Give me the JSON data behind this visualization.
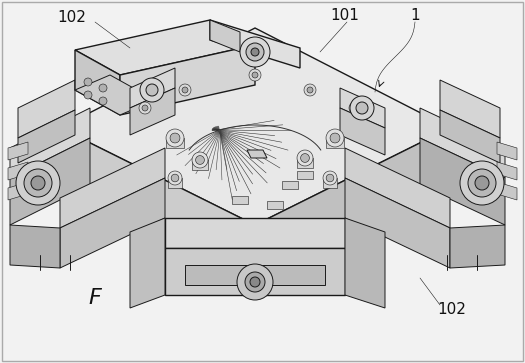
{
  "background_color": "#f2f2f2",
  "line_color": "#1a1a1a",
  "label_102_tl": "102",
  "label_101": "101",
  "label_1": "1",
  "label_102_br": "102",
  "label_F": "F",
  "fig_width": 5.25,
  "fig_height": 3.63,
  "dpi": 100,
  "img_bg": "#f4f4f4"
}
